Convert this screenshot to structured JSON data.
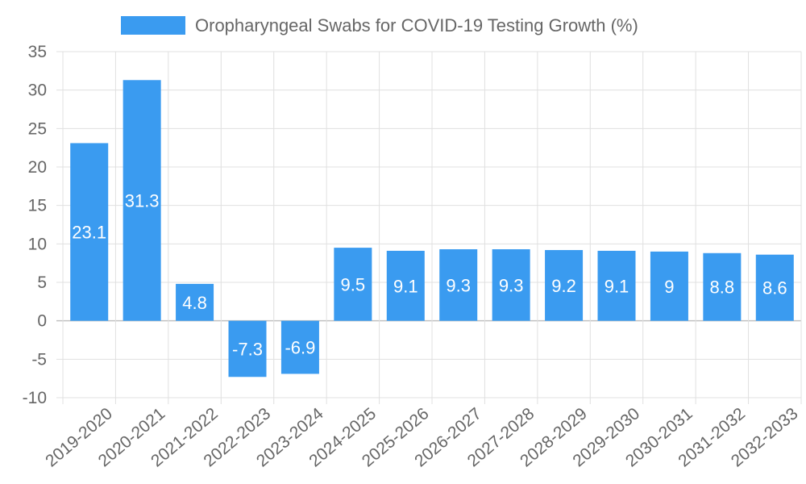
{
  "chart_data": {
    "type": "bar",
    "categories": [
      "2019-2020",
      "2020-2021",
      "2021-2022",
      "2022-2023",
      "2023-2024",
      "2024-2025",
      "2025-2026",
      "2026-2027",
      "2027-2028",
      "2028-2029",
      "2029-2030",
      "2030-2031",
      "2031-2032",
      "2032-2033"
    ],
    "series": [
      {
        "name": "Oropharyngeal Swabs for COVID-19 Testing Growth (%)",
        "values": [
          23.1,
          31.3,
          4.8,
          -7.3,
          -6.9,
          9.5,
          9.1,
          9.3,
          9.3,
          9.2,
          9.1,
          9,
          8.8,
          8.6
        ]
      }
    ],
    "ylim": [
      -10,
      35
    ],
    "yticks": [
      35,
      30,
      25,
      20,
      15,
      10,
      5,
      0,
      -5,
      -10
    ],
    "grid": true,
    "legend_position": "top",
    "bar_color": "#3a9bf0",
    "grid_color": "#e0e0e0",
    "zero_line_color": "#c0c0c0",
    "text_color": "#666666",
    "data_label_color": "#ffffff"
  }
}
